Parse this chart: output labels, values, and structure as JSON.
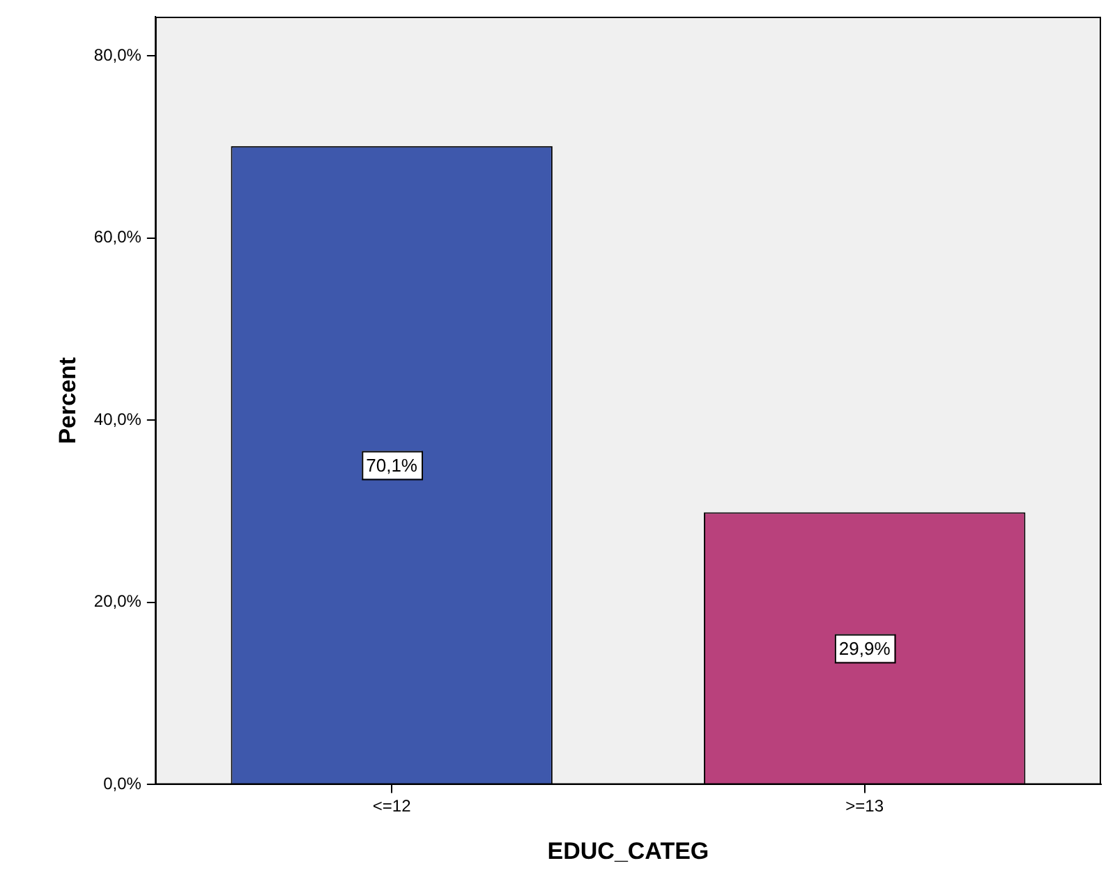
{
  "chart_data": {
    "type": "bar",
    "xlabel": "EDUC_CATEG",
    "ylabel": "Percent",
    "categories": [
      "<=12",
      ">=13"
    ],
    "values": [
      70.1,
      29.9
    ],
    "colors": [
      "#3e58ac",
      "#b9417c"
    ],
    "value_labels": [
      "70,1%",
      "29,9%"
    ],
    "ylim": [
      0,
      84.3
    ],
    "yticks": [
      {
        "value": 0,
        "label": "0,0%"
      },
      {
        "value": 20,
        "label": "20,0%"
      },
      {
        "value": 40,
        "label": "40,0%"
      },
      {
        "value": 60,
        "label": "60,0%"
      },
      {
        "value": 80,
        "label": "80,0%"
      }
    ],
    "grid": false,
    "legend": false
  }
}
